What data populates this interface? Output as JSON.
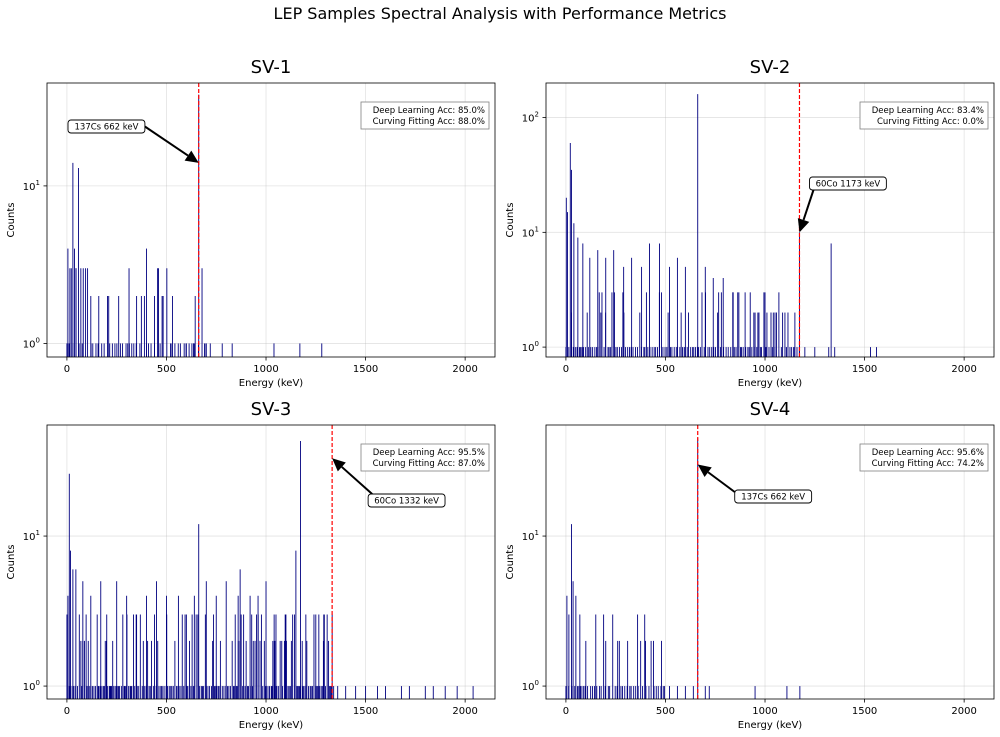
{
  "figure_title": "LEP Samples Spectral Analysis with Performance Metrics",
  "colors": {
    "spectrum": "#000080",
    "marker": "#ff0000",
    "arrow": "#000000"
  },
  "chart_data": [
    {
      "type": "histogram",
      "title": "SV-1",
      "xlabel": "Energy (keV)",
      "ylabel": "Counts",
      "xlim": [
        -100,
        2150
      ],
      "ylim": [
        0.82,
        45
      ],
      "yscale": "log",
      "xticks": [
        0,
        500,
        1000,
        1500,
        2000
      ],
      "yticks": [
        {
          "value": 1,
          "base": "10",
          "exp": "0"
        },
        {
          "value": 10,
          "base": "10",
          "exp": "1"
        }
      ],
      "grid": true,
      "peaks": [
        {
          "energy": 5,
          "counts": 4
        },
        {
          "energy": 15,
          "counts": 3
        },
        {
          "energy": 22,
          "counts": 3
        },
        {
          "energy": 30,
          "counts": 14
        },
        {
          "energy": 38,
          "counts": 4
        },
        {
          "energy": 46,
          "counts": 3
        },
        {
          "energy": 58,
          "counts": 13
        },
        {
          "energy": 70,
          "counts": 3
        },
        {
          "energy": 82,
          "counts": 3
        },
        {
          "energy": 120,
          "counts": 2
        },
        {
          "energy": 160,
          "counts": 2
        },
        {
          "energy": 210,
          "counts": 2
        },
        {
          "energy": 260,
          "counts": 2
        },
        {
          "energy": 312,
          "counts": 3
        },
        {
          "energy": 350,
          "counts": 2
        },
        {
          "energy": 400,
          "counts": 4
        },
        {
          "energy": 440,
          "counts": 2
        },
        {
          "energy": 460,
          "counts": 3
        },
        {
          "energy": 478,
          "counts": 2
        },
        {
          "energy": 530,
          "counts": 2
        },
        {
          "energy": 662,
          "counts": 38
        }
      ],
      "baseline_singles": [
        0,
        700,
        12
      ],
      "sparse_singles": [
        600,
        640,
        700,
        720,
        780,
        830,
        1040,
        1170,
        1280
      ],
      "metrics": {
        "deep_learning": "Deep Learning Acc: 85.0%",
        "curve_fitting": "Curving Fitting Acc: 88.0%"
      },
      "reference_line": 662,
      "annotation": {
        "label": "137Cs 662 keV",
        "target_energy": 662,
        "target_counts": 14,
        "text_side": "left"
      }
    },
    {
      "type": "histogram",
      "title": "SV-2",
      "xlabel": "Energy (keV)",
      "ylabel": "Counts",
      "xlim": [
        -100,
        2150
      ],
      "ylim": [
        0.82,
        200
      ],
      "yscale": "log",
      "xticks": [
        0,
        500,
        1000,
        1500,
        2000
      ],
      "yticks": [
        {
          "value": 1,
          "base": "10",
          "exp": "0"
        },
        {
          "value": 10,
          "base": "10",
          "exp": "1"
        },
        {
          "value": 100,
          "base": "10",
          "exp": "2"
        }
      ],
      "grid": true,
      "peaks": [
        {
          "energy": 2,
          "counts": 20
        },
        {
          "energy": 8,
          "counts": 15
        },
        {
          "energy": 22,
          "counts": 60
        },
        {
          "energy": 28,
          "counts": 35
        },
        {
          "energy": 40,
          "counts": 12
        },
        {
          "energy": 60,
          "counts": 9
        },
        {
          "energy": 85,
          "counts": 8
        },
        {
          "energy": 120,
          "counts": 6
        },
        {
          "energy": 160,
          "counts": 7
        },
        {
          "energy": 200,
          "counts": 6
        },
        {
          "energy": 240,
          "counts": 7
        },
        {
          "energy": 290,
          "counts": 5
        },
        {
          "energy": 330,
          "counts": 6
        },
        {
          "energy": 380,
          "counts": 5
        },
        {
          "energy": 420,
          "counts": 8
        },
        {
          "energy": 470,
          "counts": 8
        },
        {
          "energy": 520,
          "counts": 5
        },
        {
          "energy": 560,
          "counts": 6
        },
        {
          "energy": 600,
          "counts": 5
        },
        {
          "energy": 662,
          "counts": 160
        },
        {
          "energy": 700,
          "counts": 5
        },
        {
          "energy": 740,
          "counts": 4
        },
        {
          "energy": 790,
          "counts": 4
        },
        {
          "energy": 840,
          "counts": 3
        },
        {
          "energy": 900,
          "counts": 3
        },
        {
          "energy": 950,
          "counts": 2
        },
        {
          "energy": 1000,
          "counts": 3
        },
        {
          "energy": 1050,
          "counts": 2
        },
        {
          "energy": 1100,
          "counts": 2
        },
        {
          "energy": 1150,
          "counts": 2
        },
        {
          "energy": 1173,
          "counts": 10
        },
        {
          "energy": 1332,
          "counts": 8
        }
      ],
      "baseline_singles": [
        0,
        1180,
        8
      ],
      "sparse_singles": [
        1200,
        1250,
        1320,
        1350,
        1530,
        1560
      ],
      "metrics": {
        "deep_learning": "Deep Learning Acc: 83.4%",
        "curve_fitting": "Curving Fitting Acc: 0.0%"
      },
      "reference_line": 1173,
      "annotation": {
        "label": "60Co 1173 keV",
        "target_energy": 1173,
        "target_counts": 10,
        "text_side": "right"
      }
    },
    {
      "type": "histogram",
      "title": "SV-3",
      "xlabel": "Energy (keV)",
      "ylabel": "Counts",
      "xlim": [
        -100,
        2150
      ],
      "ylim": [
        0.82,
        55
      ],
      "yscale": "log",
      "xticks": [
        0,
        500,
        1000,
        1500,
        2000
      ],
      "yticks": [
        {
          "value": 1,
          "base": "10",
          "exp": "0"
        },
        {
          "value": 10,
          "base": "10",
          "exp": "1"
        }
      ],
      "grid": true,
      "peaks": [
        {
          "energy": 5,
          "counts": 4
        },
        {
          "energy": 12,
          "counts": 26
        },
        {
          "energy": 18,
          "counts": 8
        },
        {
          "energy": 30,
          "counts": 6
        },
        {
          "energy": 45,
          "counts": 6
        },
        {
          "energy": 80,
          "counts": 5
        },
        {
          "energy": 120,
          "counts": 4
        },
        {
          "energy": 170,
          "counts": 5
        },
        {
          "energy": 200,
          "counts": 3
        },
        {
          "energy": 250,
          "counts": 5
        },
        {
          "energy": 300,
          "counts": 4
        },
        {
          "energy": 350,
          "counts": 3
        },
        {
          "energy": 400,
          "counts": 4
        },
        {
          "energy": 450,
          "counts": 5
        },
        {
          "energy": 500,
          "counts": 4
        },
        {
          "energy": 560,
          "counts": 4
        },
        {
          "energy": 600,
          "counts": 3
        },
        {
          "energy": 640,
          "counts": 4
        },
        {
          "energy": 662,
          "counts": 12
        },
        {
          "energy": 700,
          "counts": 5
        },
        {
          "energy": 750,
          "counts": 4
        },
        {
          "energy": 800,
          "counts": 5
        },
        {
          "energy": 860,
          "counts": 4
        },
        {
          "energy": 870,
          "counts": 6
        },
        {
          "energy": 920,
          "counts": 4
        },
        {
          "energy": 960,
          "counts": 4
        },
        {
          "energy": 1000,
          "counts": 5
        },
        {
          "energy": 1050,
          "counts": 3
        },
        {
          "energy": 1100,
          "counts": 3
        },
        {
          "energy": 1150,
          "counts": 8
        },
        {
          "energy": 1173,
          "counts": 43
        },
        {
          "energy": 1200,
          "counts": 3
        },
        {
          "energy": 1250,
          "counts": 3
        },
        {
          "energy": 1290,
          "counts": 3
        }
      ],
      "baseline_singles": [
        0,
        1340,
        6
      ],
      "sparse_singles": [
        1360,
        1400,
        1450,
        1500,
        1560,
        1600,
        1680,
        1720,
        1800,
        1840,
        1900,
        1960,
        2040
      ],
      "metrics": {
        "deep_learning": "Deep Learning Acc: 95.5%",
        "curve_fitting": "Curving Fitting Acc: 87.0%"
      },
      "reference_line": 1332,
      "annotation": {
        "label": "60Co 1332 keV",
        "target_energy": 1332,
        "target_counts": 33,
        "text_side": "right"
      }
    },
    {
      "type": "histogram",
      "title": "SV-4",
      "xlabel": "Energy (keV)",
      "ylabel": "Counts",
      "xlim": [
        -100,
        2150
      ],
      "ylim": [
        0.82,
        55
      ],
      "yscale": "log",
      "xticks": [
        0,
        500,
        1000,
        1500,
        2000
      ],
      "yticks": [
        {
          "value": 1,
          "base": "10",
          "exp": "0"
        },
        {
          "value": 10,
          "base": "10",
          "exp": "1"
        }
      ],
      "grid": true,
      "peaks": [
        {
          "energy": 5,
          "counts": 4
        },
        {
          "energy": 15,
          "counts": 3
        },
        {
          "energy": 28,
          "counts": 12
        },
        {
          "energy": 36,
          "counts": 5
        },
        {
          "energy": 50,
          "counts": 4
        },
        {
          "energy": 70,
          "counts": 3
        },
        {
          "energy": 100,
          "counts": 2
        },
        {
          "energy": 150,
          "counts": 3
        },
        {
          "energy": 200,
          "counts": 2
        },
        {
          "energy": 260,
          "counts": 2
        },
        {
          "energy": 310,
          "counts": 2
        },
        {
          "energy": 360,
          "counts": 3
        },
        {
          "energy": 400,
          "counts": 2
        },
        {
          "energy": 440,
          "counts": 2
        },
        {
          "energy": 480,
          "counts": 2
        },
        {
          "energy": 662,
          "counts": 45
        }
      ],
      "baseline_singles": [
        0,
        500,
        10
      ],
      "sparse_singles": [
        520,
        560,
        600,
        640,
        700,
        720,
        950,
        1110,
        1175
      ],
      "metrics": {
        "deep_learning": "Deep Learning Acc: 95.6%",
        "curve_fitting": "Curving Fitting Acc: 74.2%"
      },
      "reference_line": 662,
      "annotation": {
        "label": "137Cs 662 keV",
        "target_energy": 662,
        "target_counts": 30,
        "text_side": "right"
      }
    }
  ]
}
